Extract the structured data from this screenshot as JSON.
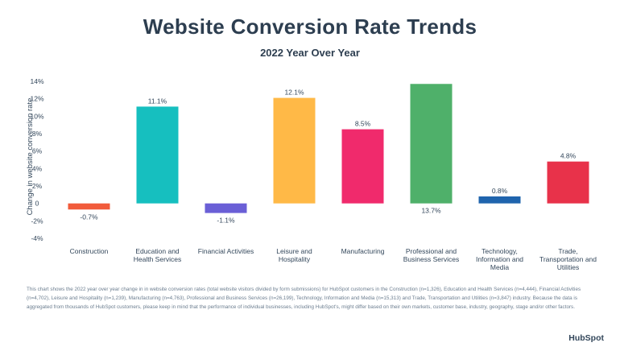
{
  "header": {
    "title": "Website Conversion Rate Trends",
    "subtitle": "2022 Year Over Year"
  },
  "chart_data": {
    "type": "bar",
    "title": "Website Conversion Rate Trends",
    "subtitle": "2022 Year Over Year",
    "xlabel": "",
    "ylabel": "Change in website conversion rate",
    "ylim": [
      -4,
      14
    ],
    "yticks": [
      "14%",
      "12%",
      "10%",
      "8%",
      "6%",
      "4%",
      "2%",
      "0",
      "-2%",
      "-4%"
    ],
    "categories": [
      [
        "Construction"
      ],
      [
        "Education and",
        "Health Services"
      ],
      [
        "Financial Activities"
      ],
      [
        "Leisure and",
        "Hospitality"
      ],
      [
        "Manufacturing"
      ],
      [
        "Professional and",
        "Business Services"
      ],
      [
        "Technology,",
        "Information and",
        "Media"
      ],
      [
        "Trade,",
        "Transportation and",
        "Utilities"
      ]
    ],
    "values": [
      -0.7,
      11.1,
      -1.1,
      12.1,
      8.5,
      13.7,
      0.8,
      4.8
    ],
    "data_labels": [
      "-0.7%",
      "11.1%",
      "-1.1%",
      "12.1%",
      "8.5%",
      "13.7%",
      "0.8%",
      "4.8%"
    ],
    "colors": [
      "#f15b3b",
      "#16bfbf",
      "#6a5fd6",
      "#ffb947",
      "#f02a6c",
      "#4fb06a",
      "#1f64ad",
      "#e8324a"
    ],
    "grid": false,
    "legend": "none"
  },
  "footnote": "This chart shows the 2022 year over year change in in website conversion rates (total website visitors divided by form submissions) for HubSpot customers in the Construction (n=1,326), Education and Health Services (n=4,444), Financial Activities (n=4,702), Leisure and Hospitality (n=1,239), Manufacturing (n=4,763), Professional and Business Services (n=26,199), Technology, Information and Media (n=15,313) and Trade, Transportation and Utilities (n=3,847) industry. Because the data is aggregated from thousands of HubSpot customers, please keep in mind that the performance of individual businesses, including HubSpot's, might differ based on their own markets, customer base, industry, geography, stage and/or other factors.",
  "brand": {
    "logo_text": "HubSpot"
  }
}
